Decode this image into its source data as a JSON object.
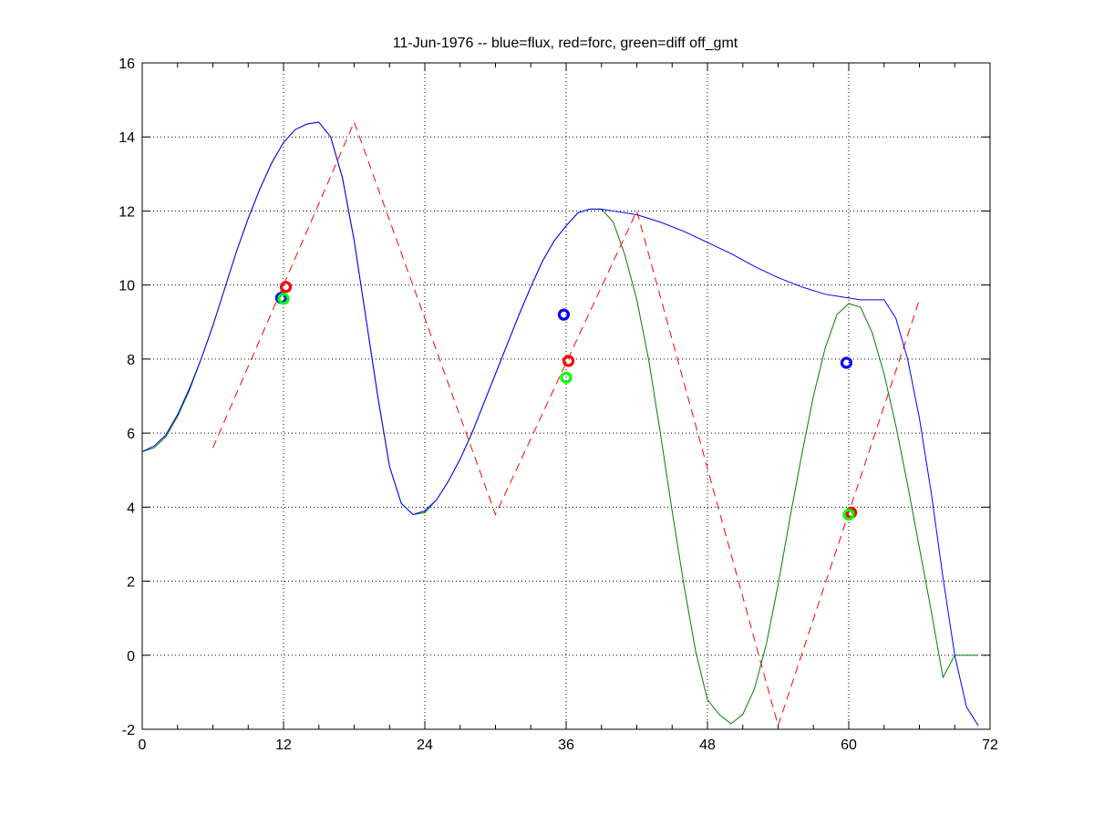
{
  "chart_data": {
    "type": "line",
    "title": "11-Jun-1976 -- blue=flux, red=forc, green=diff off_gmt",
    "xlabel": "",
    "ylabel": "",
    "xlim": [
      0,
      72
    ],
    "ylim": [
      -2,
      16
    ],
    "xticks": [
      0,
      12,
      24,
      36,
      48,
      60,
      72
    ],
    "yticks": [
      -2,
      0,
      2,
      4,
      6,
      8,
      10,
      12,
      14,
      16
    ],
    "grid": true,
    "series": [
      {
        "color": "#0000ff",
        "style": "solid",
        "x": [
          0,
          1,
          2,
          3,
          4,
          5,
          6,
          7,
          8,
          9,
          10,
          11,
          12,
          13,
          14,
          15,
          16,
          17,
          18,
          19,
          20,
          21,
          22,
          23,
          24,
          25,
          26,
          27,
          28,
          29,
          30,
          31,
          32,
          33,
          34,
          35,
          36,
          37,
          38,
          39,
          40,
          42,
          44,
          46,
          48,
          50,
          52,
          54,
          56,
          58,
          60,
          61,
          62,
          63,
          64,
          65,
          66,
          67,
          68,
          69,
          70,
          71
        ],
        "y": [
          5.5,
          5.65,
          5.95,
          6.5,
          7.2,
          8.0,
          8.9,
          9.9,
          10.9,
          11.8,
          12.6,
          13.3,
          13.85,
          14.2,
          14.35,
          14.4,
          14.0,
          12.9,
          11.2,
          9.1,
          7.0,
          5.1,
          4.1,
          3.8,
          3.9,
          4.2,
          4.7,
          5.3,
          6.0,
          6.8,
          7.6,
          8.4,
          9.2,
          9.95,
          10.65,
          11.2,
          11.6,
          11.95,
          12.05,
          12.05,
          12.0,
          11.9,
          11.7,
          11.45,
          11.15,
          10.85,
          10.5,
          10.2,
          9.95,
          9.75,
          9.65,
          9.6,
          9.6,
          9.6,
          9.1,
          8.0,
          6.4,
          4.4,
          2.1,
          0.0,
          -1.4,
          -1.9
        ]
      },
      {
        "color": "#008000",
        "style": "solid",
        "x": [
          0,
          1,
          2,
          3,
          4,
          5,
          6,
          7,
          8,
          9,
          10,
          11,
          12,
          13,
          14,
          15,
          16,
          17,
          18,
          19,
          20,
          21,
          22,
          23,
          24,
          25,
          26,
          27,
          28,
          29,
          30,
          31,
          32,
          33,
          34,
          35,
          36,
          37,
          38,
          39,
          40,
          41,
          42,
          43,
          44,
          45,
          46,
          47,
          48,
          49,
          50,
          51,
          52,
          53,
          54,
          55,
          56,
          57,
          58,
          59,
          60,
          61,
          62,
          63,
          64,
          65,
          66,
          67,
          68,
          69,
          70,
          71
        ],
        "y": [
          5.5,
          5.6,
          5.9,
          6.45,
          7.15,
          8.0,
          8.9,
          9.9,
          10.9,
          11.8,
          12.6,
          13.3,
          13.85,
          14.2,
          14.35,
          14.4,
          14.0,
          12.9,
          11.2,
          9.1,
          7.0,
          5.1,
          4.1,
          3.8,
          3.85,
          4.2,
          4.7,
          5.3,
          6.0,
          6.8,
          7.6,
          8.4,
          9.2,
          9.95,
          10.65,
          11.2,
          11.6,
          11.95,
          12.05,
          12.05,
          11.7,
          10.8,
          9.6,
          8.0,
          6.0,
          3.9,
          1.9,
          0.1,
          -1.2,
          -1.6,
          -1.85,
          -1.6,
          -0.9,
          0.3,
          1.9,
          3.7,
          5.4,
          7.0,
          8.3,
          9.2,
          9.5,
          9.4,
          8.7,
          7.6,
          6.2,
          4.6,
          2.9,
          1.2,
          -0.6,
          0.0,
          0.0,
          0.0
        ]
      },
      {
        "color": "#ff0000",
        "style": "dashed",
        "x": [
          6,
          18,
          30,
          42,
          54,
          66
        ],
        "y": [
          5.6,
          14.4,
          3.8,
          12.0,
          -1.9,
          9.6
        ]
      }
    ],
    "markers": [
      {
        "color": "#0000ff",
        "x": 11.8,
        "y": 9.65
      },
      {
        "color": "#00ff00",
        "x": 12.0,
        "y": 9.63
      },
      {
        "color": "#ff0000",
        "x": 12.2,
        "y": 9.95
      },
      {
        "color": "#0000ff",
        "x": 35.8,
        "y": 9.2
      },
      {
        "color": "#ff0000",
        "x": 36.2,
        "y": 7.95
      },
      {
        "color": "#00ff00",
        "x": 36.0,
        "y": 7.5
      },
      {
        "color": "#0000ff",
        "x": 59.8,
        "y": 7.9
      },
      {
        "color": "#ff0000",
        "x": 60.2,
        "y": 3.85
      },
      {
        "color": "#00ff00",
        "x": 60.0,
        "y": 3.8
      }
    ]
  }
}
